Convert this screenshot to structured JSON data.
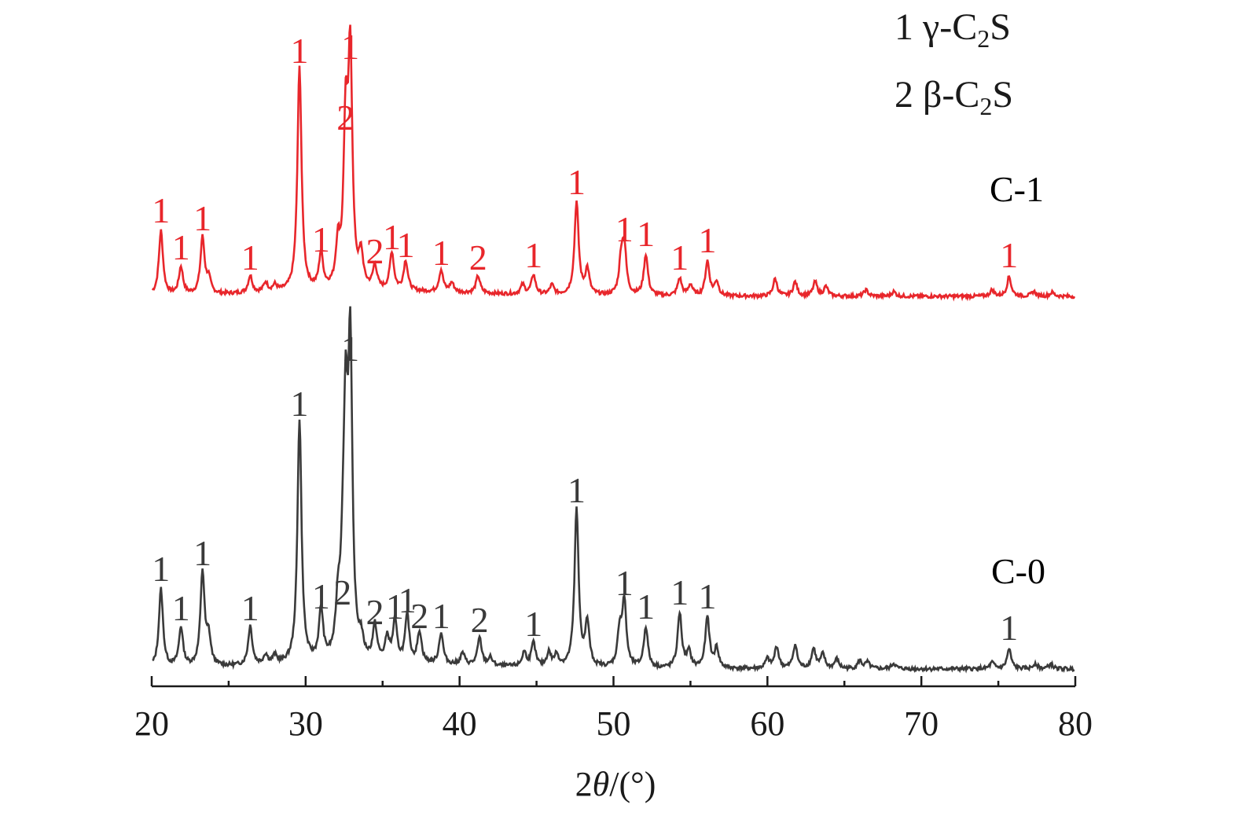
{
  "chart_data": {
    "type": "line",
    "title": "",
    "xlabel_parts": {
      "prefix": "2",
      "symbol": "θ",
      "unit": "/(°)"
    },
    "ylabel": "",
    "xlim": [
      20,
      80
    ],
    "x_ticks": [
      20,
      30,
      40,
      50,
      60,
      70,
      80
    ],
    "grid": false,
    "legend": [
      {
        "number": "1",
        "phase": "γ-C",
        "sub": "2",
        "tail": "S"
      },
      {
        "number": "2",
        "phase": "β-C",
        "sub": "2",
        "tail": "S"
      }
    ],
    "colors": {
      "C-1": "#e8262b",
      "C-0": "#3a3a3a",
      "axis": "#1a1a1a"
    },
    "series": [
      {
        "name": "C-1",
        "peaks": [
          [
            20.6,
            82,
            "1"
          ],
          [
            21.9,
            35,
            "1"
          ],
          [
            23.3,
            72,
            "1"
          ],
          [
            23.7,
            18,
            ""
          ],
          [
            26.4,
            22,
            "1"
          ],
          [
            27.4,
            12,
            ""
          ],
          [
            28.0,
            8,
            ""
          ],
          [
            29.6,
            285,
            "1"
          ],
          [
            31.0,
            45,
            "1"
          ],
          [
            32.1,
            52,
            ""
          ],
          [
            32.6,
            200,
            "2"
          ],
          [
            32.9,
            290,
            "1"
          ],
          [
            33.6,
            40,
            ""
          ],
          [
            34.5,
            30,
            "2"
          ],
          [
            35.6,
            48,
            "1"
          ],
          [
            36.5,
            38,
            "1"
          ],
          [
            38.8,
            28,
            "1"
          ],
          [
            39.5,
            12,
            ""
          ],
          [
            41.2,
            22,
            "2"
          ],
          [
            44.1,
            12,
            ""
          ],
          [
            44.8,
            25,
            "1"
          ],
          [
            46.0,
            12,
            ""
          ],
          [
            47.6,
            118,
            "1"
          ],
          [
            48.3,
            32,
            ""
          ],
          [
            50.5,
            42,
            ""
          ],
          [
            50.7,
            58,
            "1"
          ],
          [
            52.1,
            52,
            "1"
          ],
          [
            54.3,
            22,
            "1"
          ],
          [
            55.0,
            14,
            ""
          ],
          [
            56.1,
            44,
            "1"
          ],
          [
            56.7,
            18,
            ""
          ],
          [
            60.5,
            22,
            ""
          ],
          [
            61.8,
            18,
            ""
          ],
          [
            63.1,
            18,
            ""
          ],
          [
            63.8,
            12,
            ""
          ],
          [
            66.4,
            8,
            ""
          ],
          [
            68.2,
            6,
            ""
          ],
          [
            74.6,
            8,
            ""
          ],
          [
            75.7,
            25,
            "1"
          ],
          [
            77.3,
            6,
            ""
          ],
          [
            78.5,
            5,
            ""
          ]
        ]
      },
      {
        "name": "C-0",
        "peaks": [
          [
            20.6,
            100,
            "1"
          ],
          [
            21.9,
            50,
            "1"
          ],
          [
            23.3,
            120,
            "1"
          ],
          [
            23.7,
            35,
            ""
          ],
          [
            26.4,
            50,
            "1"
          ],
          [
            27.4,
            12,
            ""
          ],
          [
            28.0,
            10,
            ""
          ],
          [
            29.6,
            310,
            "1"
          ],
          [
            31.0,
            65,
            "1"
          ],
          [
            32.1,
            60,
            ""
          ],
          [
            32.4,
            70,
            "2"
          ],
          [
            32.6,
            280,
            ""
          ],
          [
            32.9,
            380,
            "1"
          ],
          [
            33.6,
            22,
            ""
          ],
          [
            34.5,
            45,
            "2"
          ],
          [
            35.3,
            30,
            ""
          ],
          [
            35.8,
            52,
            "1"
          ],
          [
            36.6,
            60,
            "1"
          ],
          [
            37.4,
            40,
            "2"
          ],
          [
            38.8,
            40,
            "1"
          ],
          [
            40.2,
            15,
            ""
          ],
          [
            41.3,
            35,
            "2"
          ],
          [
            42.0,
            10,
            ""
          ],
          [
            44.2,
            18,
            ""
          ],
          [
            44.8,
            30,
            "1"
          ],
          [
            45.8,
            18,
            ""
          ],
          [
            46.3,
            15,
            ""
          ],
          [
            47.6,
            200,
            "1"
          ],
          [
            48.3,
            55,
            ""
          ],
          [
            50.4,
            45,
            ""
          ],
          [
            50.7,
            82,
            "1"
          ],
          [
            52.1,
            52,
            "1"
          ],
          [
            54.3,
            70,
            "1"
          ],
          [
            54.9,
            20,
            ""
          ],
          [
            56.1,
            65,
            "1"
          ],
          [
            56.7,
            25,
            ""
          ],
          [
            60.0,
            12,
            ""
          ],
          [
            60.6,
            28,
            ""
          ],
          [
            61.8,
            30,
            ""
          ],
          [
            63.0,
            25,
            ""
          ],
          [
            63.6,
            18,
            ""
          ],
          [
            64.5,
            12,
            ""
          ],
          [
            66.0,
            10,
            ""
          ],
          [
            66.5,
            8,
            ""
          ],
          [
            68.2,
            7,
            ""
          ],
          [
            74.6,
            8,
            ""
          ],
          [
            75.7,
            25,
            "1"
          ],
          [
            77.4,
            7,
            ""
          ],
          [
            78.4,
            6,
            ""
          ]
        ]
      }
    ]
  }
}
